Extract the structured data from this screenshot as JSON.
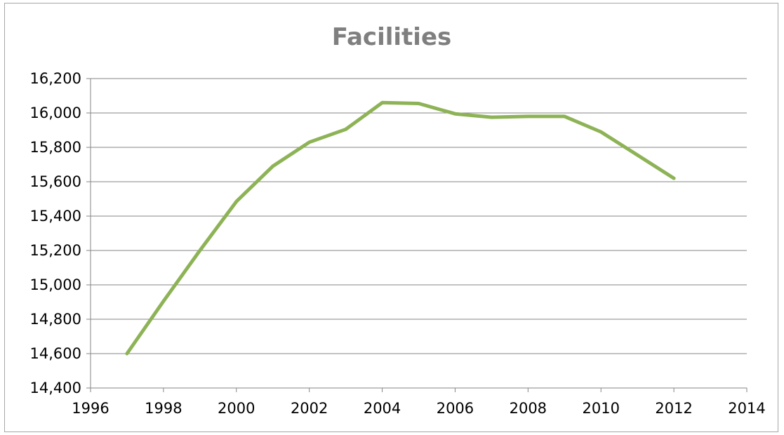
{
  "chart_data": {
    "type": "line",
    "title": "Facilities",
    "xlabel": "",
    "ylabel": "",
    "xlim": [
      1996,
      2014
    ],
    "ylim": [
      14400,
      16200
    ],
    "x_ticks": [
      "1996",
      "1998",
      "2000",
      "2002",
      "2004",
      "2006",
      "2008",
      "2010",
      "2012",
      "2014"
    ],
    "y_ticks": [
      "14,400",
      "14,600",
      "14,800",
      "15,000",
      "15,200",
      "15,400",
      "15,600",
      "15,800",
      "16,000",
      "16,200"
    ],
    "grid": "horizontal",
    "legend": "none",
    "series": [
      {
        "color": "#8db356",
        "x": [
          1997,
          1998,
          1999,
          2000,
          2001,
          2002,
          2003,
          2004,
          2005,
          2006,
          2007,
          2008,
          2009,
          2010,
          2011,
          2012
        ],
        "y": [
          14600,
          14905,
          15200,
          15485,
          15690,
          15830,
          15905,
          16060,
          16055,
          15995,
          15975,
          15980,
          15980,
          15890,
          15755,
          15620
        ]
      }
    ]
  }
}
